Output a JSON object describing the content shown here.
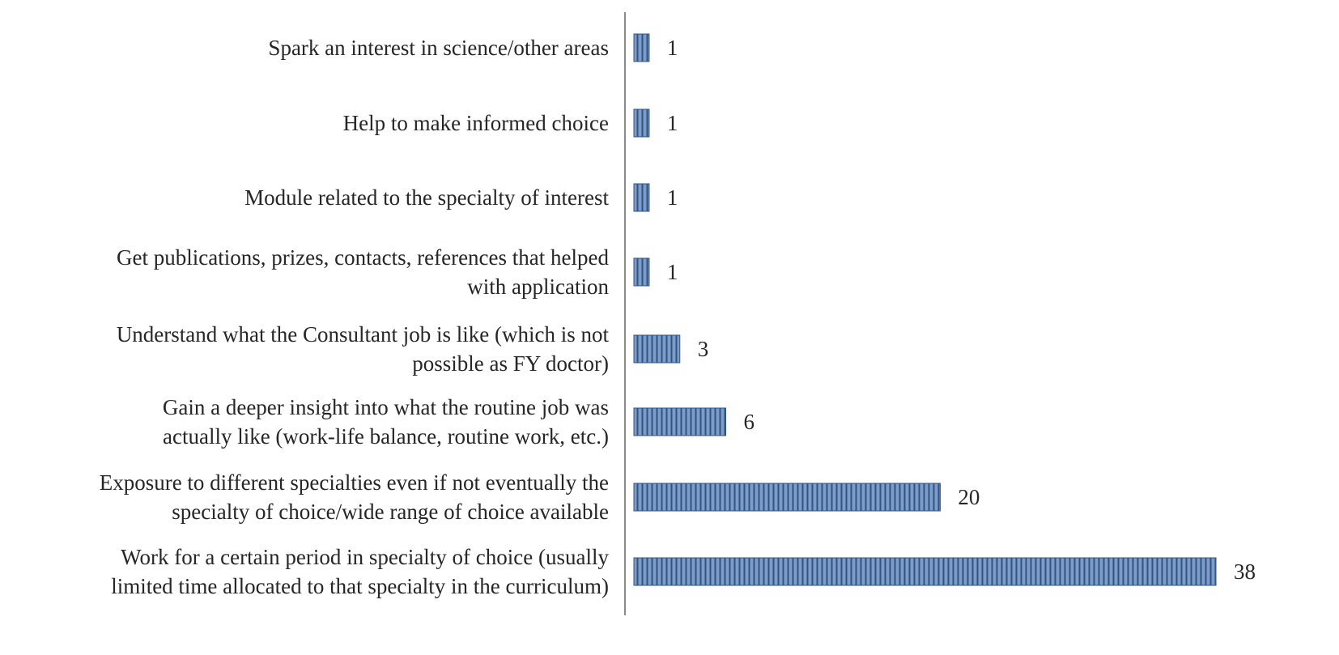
{
  "chart_data": {
    "type": "bar",
    "orientation": "horizontal",
    "title": "",
    "xlabel": "",
    "ylabel": "",
    "categories": [
      [
        "Spark an interest in science/other areas"
      ],
      [
        "Help to make informed choice"
      ],
      [
        "Module related to the specialty of interest"
      ],
      [
        "Get publications, prizes, contacts, references that helped",
        "with application"
      ],
      [
        "Understand what the Consultant job is like (which is not",
        "possible as FY doctor)"
      ],
      [
        "Gain a deeper insight into what the routine job was",
        "actually like (work-life balance, routine work, etc.)"
      ],
      [
        "Exposure to different specialties even if not eventually the",
        "specialty of choice/wide range of choice available"
      ],
      [
        "Work for a certain period in specialty of choice (usually",
        "limited time allocated to that specialty in the curriculum)"
      ]
    ],
    "values": [
      1,
      1,
      1,
      1,
      3,
      6,
      20,
      38
    ],
    "data_labels": [
      "1",
      "1",
      "1",
      "1",
      "3",
      "6",
      "20",
      "38"
    ],
    "xlim": [
      0,
      38
    ],
    "grid": false,
    "legend": "none",
    "colors": {
      "bar_fill": "#7e9cc6",
      "bar_hatch": "#2f5488",
      "bar_stroke": "#2f5488",
      "axis": "#8c8c8c",
      "text": "#262626"
    }
  }
}
